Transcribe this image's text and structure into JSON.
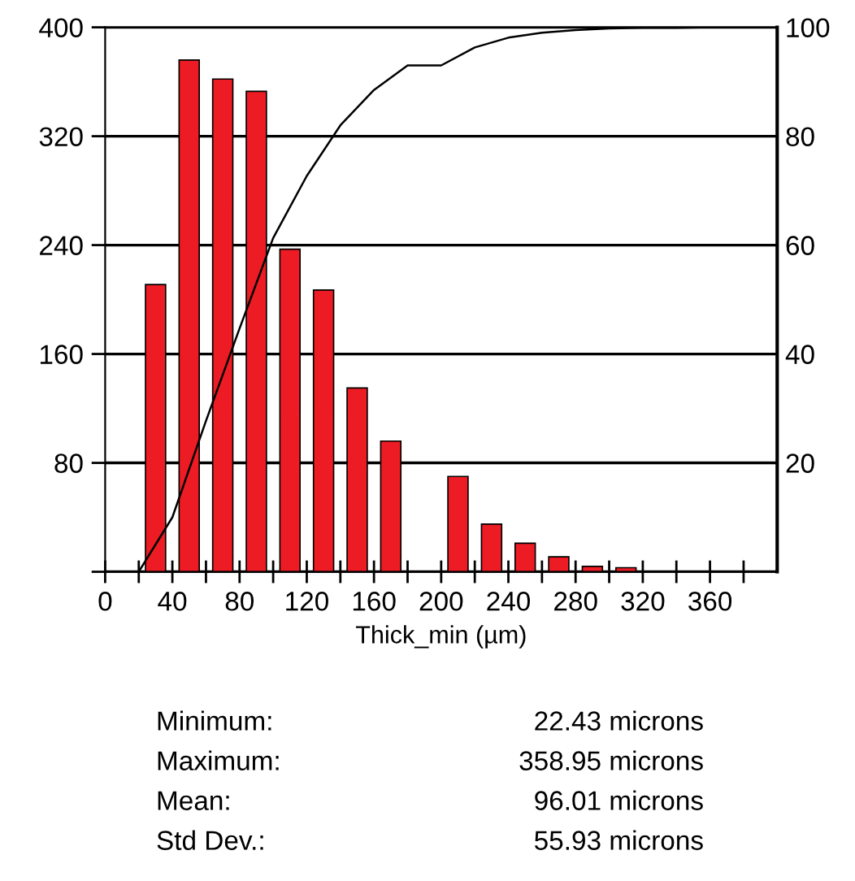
{
  "chart_data": {
    "type": "histogram",
    "xlabel": "Thick_min (µm)",
    "series": [
      {
        "color": "#ed1c24",
        "bins": [
          20,
          40,
          60,
          80,
          100,
          120,
          140,
          160,
          180,
          200,
          220,
          240,
          260,
          280,
          300,
          320
        ],
        "values": [
          211,
          376,
          362,
          353,
          237,
          207,
          135,
          96,
          0,
          70,
          35,
          21,
          11,
          4,
          3
        ]
      },
      {
        "type": "line",
        "axis": "y2",
        "color": "#000000",
        "x": [
          20,
          40,
          60,
          80,
          100,
          120,
          140,
          160,
          180,
          200,
          220,
          240,
          260,
          280,
          300,
          320,
          340,
          360
        ],
        "values": [
          0,
          10,
          27.7,
          44.7,
          61.3,
          72.7,
          82,
          88.5,
          93,
          93,
          96.3,
          98.1,
          99,
          99.5,
          99.8,
          99.9,
          99.9,
          100
        ]
      }
    ],
    "xlim": [
      0,
      400
    ],
    "xticks": [
      0,
      {
        "value": 20,
        "label": null
      },
      40,
      {
        "value": 60,
        "label": null
      },
      80,
      {
        "value": 100,
        "label": null
      },
      120,
      {
        "value": 140,
        "label": null
      },
      160,
      {
        "value": 180,
        "label": null
      },
      200,
      {
        "value": 220,
        "label": null
      },
      240,
      {
        "value": 260,
        "label": null
      },
      280,
      {
        "value": 300,
        "label": null
      },
      320,
      {
        "value": 340,
        "label": null
      },
      360,
      {
        "value": 380,
        "label": null
      }
    ],
    "ylim": [
      0,
      400
    ],
    "yticks": [
      {
        "value": 0,
        "label": null
      },
      80,
      160,
      240,
      320,
      400
    ],
    "y2lim": [
      0,
      100
    ],
    "y2ticks": [
      20,
      40,
      60,
      80,
      100
    ],
    "grid": "y",
    "annotations": [
      "Minimum:",
      "22.43 microns",
      "Maximum:",
      "358.95 microns",
      "Mean:",
      "96.01 microns",
      "Std Dev.:",
      "55.93 microns"
    ]
  }
}
